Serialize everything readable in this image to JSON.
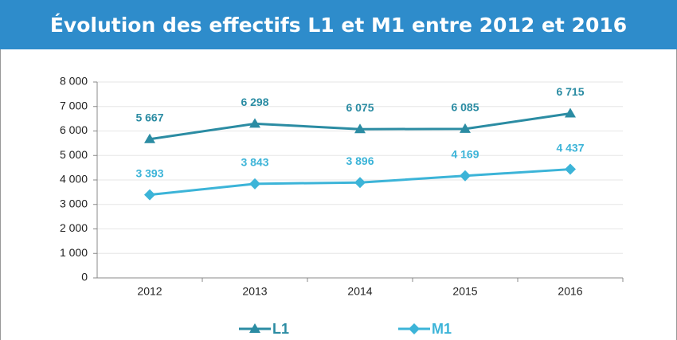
{
  "chart_data": {
    "type": "line",
    "title": "Évolution des effectifs L1 et M1 entre 2012 et 2016",
    "categories": [
      "2012",
      "2013",
      "2014",
      "2015",
      "2016"
    ],
    "series": [
      {
        "name": "L1",
        "color": "#2b8ca3",
        "marker": "triangle",
        "values": [
          5667,
          6298,
          6075,
          6085,
          6715
        ],
        "value_labels": [
          "5 667",
          "6 298",
          "6 075",
          "6 085",
          "6 715"
        ]
      },
      {
        "name": "M1",
        "color": "#3cb4d8",
        "marker": "diamond",
        "values": [
          3393,
          3843,
          3896,
          4169,
          4437
        ],
        "value_labels": [
          "3 393",
          "3 843",
          "3 896",
          "4 169",
          "4 437"
        ]
      }
    ],
    "ylim": [
      0,
      8000
    ],
    "yticks": [
      0,
      {
        "value": 1000,
        "label": "1 000"
      },
      {
        "value": 2000,
        "label": "2 000"
      },
      {
        "value": 3000,
        "label": "3 000"
      },
      {
        "value": 4000,
        "label": "4 000"
      },
      {
        "value": 5000,
        "label": "5 000"
      },
      {
        "value": 6000,
        "label": "6 000"
      },
      {
        "value": 7000,
        "label": "7 000"
      },
      {
        "value": 8000,
        "label": "8 000"
      }
    ],
    "grid": true,
    "legend": "bottom"
  }
}
